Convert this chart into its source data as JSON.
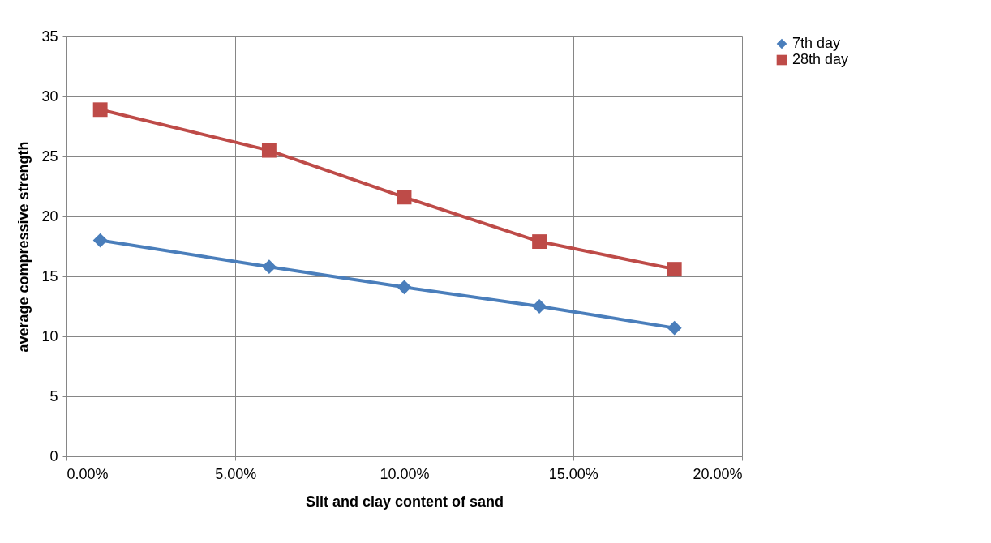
{
  "chart_data": {
    "type": "line",
    "xlabel": "Silt and clay content of sand",
    "ylabel": "average compressive strength",
    "x": [
      0.01,
      0.06,
      0.1,
      0.14,
      0.18
    ],
    "series": [
      {
        "name": "7th day",
        "color": "#4a7ebb",
        "marker": "diamond",
        "values": [
          18.0,
          15.8,
          14.1,
          12.5,
          10.7
        ]
      },
      {
        "name": "28th day",
        "color": "#be4b48",
        "marker": "square",
        "values": [
          28.9,
          25.5,
          21.6,
          17.9,
          15.6
        ]
      }
    ],
    "xlim": [
      0,
      0.2
    ],
    "xticks": [
      {
        "value": 0,
        "label": "0.00%"
      },
      {
        "value": 0.05,
        "label": "5.00%"
      },
      {
        "value": 0.1,
        "label": "10.00%"
      },
      {
        "value": 0.15,
        "label": "15.00%"
      },
      {
        "value": 0.2,
        "label": "20.00%"
      }
    ],
    "ylim": [
      0,
      35
    ],
    "yticks": [
      0,
      5,
      10,
      15,
      20,
      25,
      30,
      35
    ],
    "grid": true,
    "legend": "right",
    "line_style": "solid"
  }
}
